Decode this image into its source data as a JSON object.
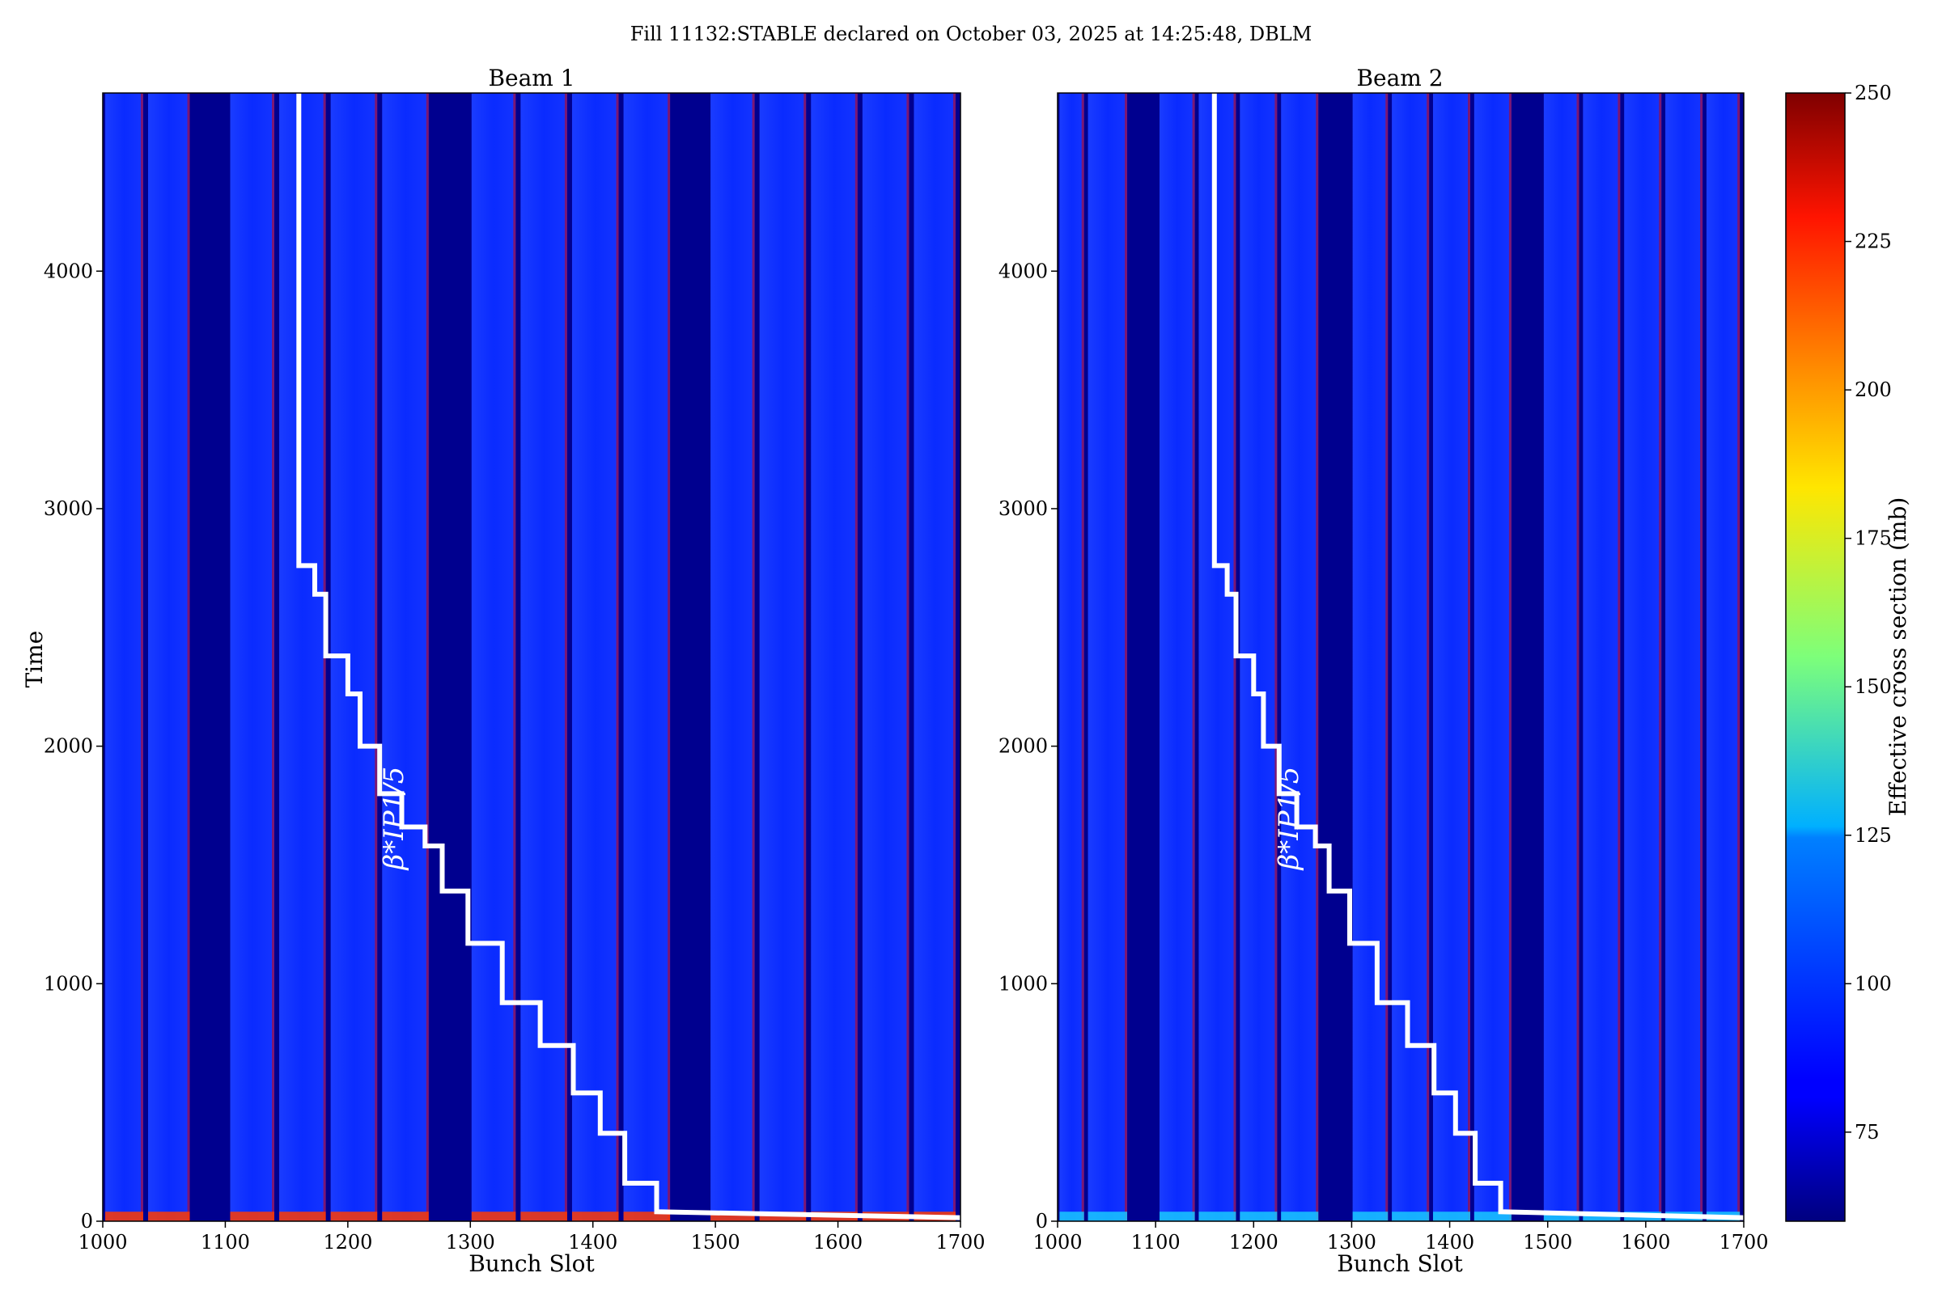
{
  "title": "Fill 11132:STABLE declared on October 03, 2025 at 14:25:48, DBLM",
  "colors": {
    "background_gap": "#00008f",
    "main_blue": "#0a2bff",
    "hot_red": "#d40000",
    "step_line": "#ffffff"
  },
  "chart_data": [
    {
      "type": "heatmap",
      "title": "Beam 1",
      "xlabel": "Bunch Slot",
      "ylabel": "Time",
      "xlim": [
        1000,
        1700
      ],
      "ylim": [
        0,
        4750
      ],
      "xticks": [
        1000,
        1100,
        1200,
        1300,
        1400,
        1500,
        1600,
        1700
      ],
      "yticks": [
        0,
        1000,
        2000,
        3000,
        4000
      ],
      "colormap": "jet",
      "color_range": [
        60,
        250
      ],
      "filled_trains": [
        [
          1002,
          1033
        ],
        [
          1037,
          1071
        ],
        [
          1104,
          1140
        ],
        [
          1144,
          1182
        ],
        [
          1186,
          1224
        ],
        [
          1228,
          1266
        ],
        [
          1301,
          1337
        ],
        [
          1341,
          1379
        ],
        [
          1383,
          1421
        ],
        [
          1425,
          1463
        ],
        [
          1496,
          1532
        ],
        [
          1536,
          1574
        ],
        [
          1578,
          1616
        ],
        [
          1620,
          1658
        ],
        [
          1662,
          1696
        ]
      ],
      "beta_star_label": "β*IP1/5",
      "beta_star_label_pos": [
        1245,
        1480
      ],
      "beta_star_steps": [
        {
          "x": 1160,
          "y": 4750
        },
        {
          "x": 1160,
          "y": 2760
        },
        {
          "x": 1173,
          "y": 2760
        },
        {
          "x": 1173,
          "y": 2640
        },
        {
          "x": 1182,
          "y": 2640
        },
        {
          "x": 1182,
          "y": 2380
        },
        {
          "x": 1200,
          "y": 2380
        },
        {
          "x": 1200,
          "y": 2220
        },
        {
          "x": 1210,
          "y": 2220
        },
        {
          "x": 1210,
          "y": 2000
        },
        {
          "x": 1226,
          "y": 2000
        },
        {
          "x": 1226,
          "y": 1800
        },
        {
          "x": 1244,
          "y": 1800
        },
        {
          "x": 1244,
          "y": 1660
        },
        {
          "x": 1263,
          "y": 1660
        },
        {
          "x": 1263,
          "y": 1580
        },
        {
          "x": 1277,
          "y": 1580
        },
        {
          "x": 1277,
          "y": 1390
        },
        {
          "x": 1298,
          "y": 1390
        },
        {
          "x": 1298,
          "y": 1170
        },
        {
          "x": 1326,
          "y": 1170
        },
        {
          "x": 1326,
          "y": 920
        },
        {
          "x": 1357,
          "y": 920
        },
        {
          "x": 1357,
          "y": 740
        },
        {
          "x": 1384,
          "y": 740
        },
        {
          "x": 1384,
          "y": 540
        },
        {
          "x": 1406,
          "y": 540
        },
        {
          "x": 1406,
          "y": 370
        },
        {
          "x": 1426,
          "y": 370
        },
        {
          "x": 1426,
          "y": 160
        },
        {
          "x": 1452,
          "y": 160
        },
        {
          "x": 1452,
          "y": 40
        },
        {
          "x": 1700,
          "y": 15
        }
      ]
    },
    {
      "type": "heatmap",
      "title": "Beam 2",
      "xlabel": "Bunch Slot",
      "ylabel": "",
      "xlim": [
        1000,
        1700
      ],
      "ylim": [
        0,
        4750
      ],
      "xticks": [
        1000,
        1100,
        1200,
        1300,
        1400,
        1500,
        1600,
        1700
      ],
      "yticks": [
        0,
        1000,
        2000,
        3000,
        4000
      ],
      "colormap": "jet",
      "color_range": [
        60,
        250
      ],
      "filled_trains": [
        [
          1002,
          1027
        ],
        [
          1031,
          1071
        ],
        [
          1104,
          1140
        ],
        [
          1144,
          1182
        ],
        [
          1186,
          1224
        ],
        [
          1228,
          1266
        ],
        [
          1301,
          1337
        ],
        [
          1341,
          1379
        ],
        [
          1383,
          1421
        ],
        [
          1425,
          1463
        ],
        [
          1496,
          1532
        ],
        [
          1536,
          1574
        ],
        [
          1578,
          1616
        ],
        [
          1620,
          1658
        ],
        [
          1662,
          1696
        ]
      ],
      "beta_star_label": "β*IP1/5",
      "beta_star_label_pos": [
        1245,
        1480
      ],
      "beta_star_steps": [
        {
          "x": 1160,
          "y": 4750
        },
        {
          "x": 1160,
          "y": 2760
        },
        {
          "x": 1173,
          "y": 2760
        },
        {
          "x": 1173,
          "y": 2640
        },
        {
          "x": 1182,
          "y": 2640
        },
        {
          "x": 1182,
          "y": 2380
        },
        {
          "x": 1200,
          "y": 2380
        },
        {
          "x": 1200,
          "y": 2220
        },
        {
          "x": 1210,
          "y": 2220
        },
        {
          "x": 1210,
          "y": 2000
        },
        {
          "x": 1226,
          "y": 2000
        },
        {
          "x": 1226,
          "y": 1800
        },
        {
          "x": 1244,
          "y": 1800
        },
        {
          "x": 1244,
          "y": 1660
        },
        {
          "x": 1263,
          "y": 1660
        },
        {
          "x": 1263,
          "y": 1580
        },
        {
          "x": 1277,
          "y": 1580
        },
        {
          "x": 1277,
          "y": 1390
        },
        {
          "x": 1298,
          "y": 1390
        },
        {
          "x": 1298,
          "y": 1170
        },
        {
          "x": 1326,
          "y": 1170
        },
        {
          "x": 1326,
          "y": 920
        },
        {
          "x": 1357,
          "y": 920
        },
        {
          "x": 1357,
          "y": 740
        },
        {
          "x": 1384,
          "y": 740
        },
        {
          "x": 1384,
          "y": 540
        },
        {
          "x": 1406,
          "y": 540
        },
        {
          "x": 1406,
          "y": 370
        },
        {
          "x": 1426,
          "y": 370
        },
        {
          "x": 1426,
          "y": 160
        },
        {
          "x": 1452,
          "y": 160
        },
        {
          "x": 1452,
          "y": 40
        },
        {
          "x": 1700,
          "y": 15
        }
      ]
    }
  ],
  "colorbar": {
    "label": "Effective cross section (mb)",
    "range": [
      60,
      250
    ],
    "ticks": [
      75,
      100,
      125,
      150,
      175,
      200,
      225,
      250
    ]
  }
}
